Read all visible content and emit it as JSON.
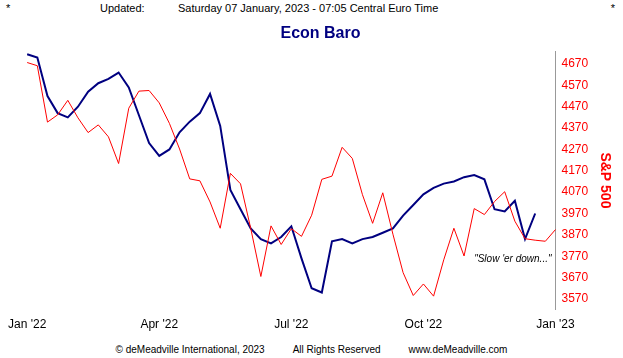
{
  "page": {
    "header": [
      "*",
      "Updated:",
      "Saturday 07 January, 2023 - 07:05 Central Euro Time",
      "*"
    ],
    "footer": [
      "© deMeadville International, 2023",
      "All Rights Reserved",
      "www.deMeadville.com"
    ]
  },
  "chart_data": {
    "type": "line",
    "title": "Econ Baro",
    "y_label": "S&P 500",
    "categories": [
      "Jan '22",
      null,
      null,
      null,
      null,
      null,
      null,
      null,
      null,
      null,
      null,
      null,
      null,
      "Apr '22",
      null,
      null,
      null,
      null,
      null,
      null,
      null,
      null,
      null,
      null,
      null,
      null,
      "Jul '22",
      null,
      null,
      null,
      null,
      null,
      null,
      null,
      null,
      null,
      null,
      null,
      null,
      "Oct '22",
      null,
      null,
      null,
      null,
      null,
      null,
      null,
      null,
      null,
      null,
      null,
      null,
      "Jan '23"
    ],
    "series": [
      {
        "color": "#000080",
        "values": [
          4716,
          4700,
          4520,
          4440,
          4420,
          4470,
          4540,
          4580,
          4600,
          4630,
          4560,
          4430,
          4300,
          4240,
          4270,
          4350,
          4400,
          4440,
          4530,
          4380,
          4080,
          3990,
          3900,
          3850,
          3830,
          3860,
          3910,
          3760,
          3620,
          3600,
          3840,
          3850,
          3830,
          3850,
          3860,
          3880,
          3900,
          3960,
          4010,
          4060,
          4090,
          4110,
          4120,
          4140,
          4150,
          4130,
          3990,
          3980,
          4030,
          3850,
          3970,
          null,
          null
        ]
      },
      {
        "color": "#ff0000",
        "values": [
          4677,
          4662,
          4398,
          4432,
          4500,
          4418,
          4349,
          4385,
          4329,
          4204,
          4463,
          4543,
          4546,
          4488,
          4392,
          4272,
          4132,
          4123,
          4024,
          3901,
          4158,
          4109,
          3901,
          3675,
          3912,
          3825,
          3899,
          3863,
          3962,
          4130,
          4145,
          4280,
          4228,
          4058,
          3924,
          4067,
          3873,
          3693,
          3586,
          3640,
          3583,
          3753,
          3901,
          3771,
          3993,
          3965,
          4026,
          4072,
          3934,
          3852,
          3845,
          3840,
          3895
        ]
      }
    ],
    "ylim": [
      3520,
      4730
    ],
    "yticks": [
      3570,
      3670,
      3770,
      3870,
      3970,
      4070,
      4170,
      4270,
      4370,
      4470,
      4570,
      4670
    ],
    "grid": false,
    "annotations": [
      {
        "text": "\"Slow 'er down...\""
      }
    ]
  }
}
